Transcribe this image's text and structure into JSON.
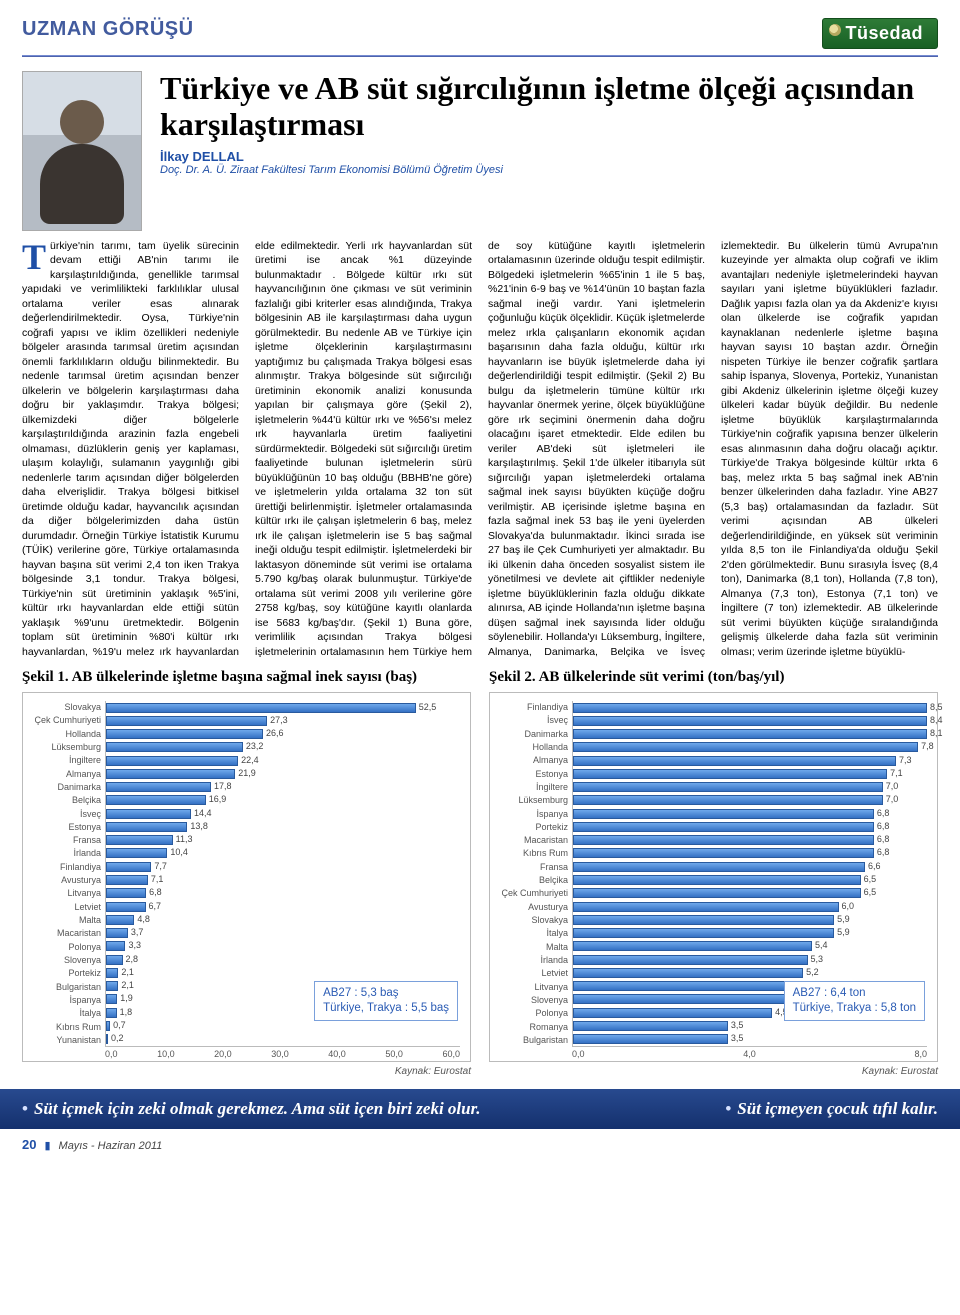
{
  "meta": {
    "section_tag": "UZMAN GÖRÜŞÜ",
    "brand": "Tüsedad",
    "page_number": "20",
    "issue": "Mayıs - Haziran 2011"
  },
  "article": {
    "headline": "Türkiye ve AB süt sığırcılığının işletme ölçeği açısından karşılaştırması",
    "author_name": "İlkay DELLAL",
    "author_title": "Doç. Dr. A. Ü. Ziraat Fakültesi Tarım Ekonomisi Bölümü Öğretim Üyesi",
    "body_dropcap": "T",
    "body_text": "ürkiye'nin tarımı, tam üyelik sürecinin devam ettiği AB'nin tarımı ile karşılaştırıldığında, genellikle tarımsal yapıdaki ve verimlilikteki farklılıklar ulusal ortalama veriler esas alınarak değerlendirilmektedir. Oysa, Türkiye'nin coğrafi yapısı ve iklim özellikleri nedeniyle bölgeler arasında tarımsal üretim açısından önemli farklılıkların olduğu bilinmektedir. Bu nedenle tarımsal üretim açısından benzer ülkelerin ve bölgelerin karşılaştırması daha doğru bir yaklaşımdır. Trakya bölgesi; ülkemizdeki diğer bölgelerle karşılaştırıldığında arazinin fazla engebeli olmaması, düzlüklerin geniş yer kaplaması, ulaşım kolaylığı, sulamanın yaygınlığı gibi nedenlerle tarım açısından diğer bölgelerden daha elverişlidir. Trakya bölgesi bitkisel üretimde olduğu kadar, hayvancılık açısından da diğer bölgelerimizden daha üstün durumdadır. Örneğin Türkiye İstatistik Kurumu (TÜİK) verilerine göre, Türkiye ortalamasında hayvan başına süt verimi 2,4 ton iken Trakya bölgesinde 3,1 tondur. Trakya bölgesi, Türkiye'nin süt üretiminin yaklaşık %5'ini, kültür ırkı hayvanlardan elde ettiği sütün yaklaşık %9'unu üretmektedir. Bölgenin toplam süt üretiminin %80'i kültür ırkı hayvanlardan, %19'u melez ırk hayvanlardan elde edilmektedir. Yerli ırk hayvanlardan süt üretimi ise ancak %1 düzeyinde bulunmaktadır . Bölgede kültür ırkı süt hayvancılığının öne çıkması ve süt veriminin fazlalığı gibi kriterler esas alındığında, Trakya bölgesinin AB ile karşılaştırması daha uygun görülmektedir. Bu nedenle AB ve Türkiye için işletme ölçeklerinin karşılaştırmasını yaptığımız bu çalışmada Trakya bölgesi esas alınmıştır. Trakya bölgesinde süt sığırcılığı üretiminin ekonomik analizi konusunda yapılan bir çalışmaya göre (Şekil 2), işletmelerin %44'ü kültür ırkı ve %56'sı melez ırk hayvanlarla üretim faaliyetini sürdürmektedir. Bölgedeki süt sığırcılığı üretim faaliyetinde bulunan işletmelerin sürü büyüklüğünün 10 baş olduğu (BBHB'ne göre) ve işletmelerin yılda ortalama 32 ton süt ürettiği belirlenmiştir. İşletmeler ortalamasında kültür ırkı ile çalışan işletmelerin 6 baş, melez ırk ile çalışan işletmelerin ise 5 baş sağmal ineği olduğu tespit edilmiştir. İşletmelerdeki bir laktasyon döneminde süt verimi ise ortalama 5.790 kg/baş olarak bulunmuştur. Türkiye'de ortalama süt verimi 2008 yılı verilerine göre 2758 kg/baş, soy kütüğüne kayıtlı olanlarda ise 5683 kg/baş'dır. (Şekil 1) Buna göre, verimlilik açısından Trakya bölgesi işletmelerinin ortalamasının hem Türkiye hem de soy kütüğüne kayıtlı işletmelerin ortalamasının üzerinde olduğu tespit edilmiştir. Bölgedeki işletmelerin %65'inin 1 ile 5 baş, %21'inin 6-9 baş ve %14'ünün 10 baştan fazla sağmal ineği vardır. Yani işletmelerin çoğunluğu küçük ölçeklidir. Küçük işletmelerde melez ırkla çalışanların ekonomik açıdan başarısının daha fazla olduğu, kültür ırkı hayvanların ise büyük işletmelerde daha iyi değerlendirildiği tespit edilmiştir. (Şekil 2) Bu bulgu da işletmelerin tümüne kültür ırkı hayvanlar önermek yerine, ölçek büyüklüğüne göre ırk seçimini önermenin daha doğru olacağını işaret etmektedir. Elde edilen bu veriler AB'deki süt işletmeleri ile karşılaştırılmış. Şekil 1'de ülkeler itibarıyla süt sığırcılığı yapan işletmelerdeki ortalama sağmal inek sayısı büyükten küçüğe doğru verilmiştir. AB içerisinde işletme başına en fazla sağmal inek 53 baş ile yeni üyelerden Slovakya'da bulunmaktadır. İkinci sırada ise 27 baş ile Çek Cumhuriyeti yer almaktadır. Bu iki ülkenin daha önceden sosyalist sistem ile yönetilmesi ve devlete ait çiftlikler nedeniyle işletme büyüklüklerinin fazla olduğu dikkate alınırsa, AB içinde Hollanda'nın işletme başına düşen sağmal inek sayısında lider olduğu söylenebilir. Hollanda'yı Lüksemburg, İngiltere, Almanya, Danimarka, Belçika ve İsveç izlemektedir. Bu ülkelerin tümü Avrupa'nın kuzeyinde yer almakta olup coğrafi ve iklim avantajları nedeniyle işletmelerindeki hayvan sayıları yani işletme büyüklükleri fazladır. Dağlık yapısı fazla olan ya da Akdeniz'e kıyısı olan ülkelerde ise coğrafik yapıdan kaynaklanan nedenlerle işletme başına hayvan sayısı 10 baştan azdır. Örneğin nispeten Türkiye ile benzer coğrafik şartlara sahip İspanya, Slovenya, Portekiz, Yunanistan gibi Akdeniz ülkelerinin işletme ölçeği kuzey ülkeleri kadar büyük değildir. Bu nedenle işletme büyüklük karşılaştırmalarında Türkiye'nin coğrafik yapısına benzer ülkelerin esas alınmasının daha doğru olacağı açıktır. Türkiye'de Trakya bölgesinde kültür ırkta 6 baş, melez ırkta 5 baş sağmal inek AB'nin benzer ülkelerinden daha fazladır. Yine AB27 (5,3 baş) ortalamasından da fazladır. Süt verimi açısından AB ülkeleri değerlendirildiğinde, en yüksek süt veriminin yılda 8,5 ton ile Finlandiya'da olduğu Şekil 2'den görülmektedir. Bunu sırasıyla İsveç (8,4 ton), Danimarka (8,1 ton), Hollanda (7,8 ton), Almanya (7,3 ton), Estonya (7,1 ton) ve İngiltere (7 ton) izlemektedir. AB ülkelerinde süt verimi büyükten küçüğe sıralandığında gelişmiş ülkelerde daha fazla süt veriminin olması; verim üzerinde işletme büyüklü-"
  },
  "chart1": {
    "title": "Şekil 1. AB ülkelerinde işletme başına sağmal inek sayısı (baş)",
    "type": "horizontal-bar",
    "xlim": [
      0,
      60
    ],
    "xtick_step": 10,
    "bar_color_start": "#6fa8eb",
    "bar_color_end": "#3470c4",
    "border_color": "#295a9e",
    "background_color": "#ffffff",
    "grid_color": "#e0e0e0",
    "label_fontsize": 9,
    "title_fontsize": 15,
    "data": [
      {
        "label": "Slovakya",
        "value": 52.5
      },
      {
        "label": "Çek Cumhuriyeti",
        "value": 27.3
      },
      {
        "label": "Hollanda",
        "value": 26.6
      },
      {
        "label": "Lüksemburg",
        "value": 23.2
      },
      {
        "label": "İngiltere",
        "value": 22.4
      },
      {
        "label": "Almanya",
        "value": 21.9
      },
      {
        "label": "Danimarka",
        "value": 17.8
      },
      {
        "label": "Belçika",
        "value": 16.9
      },
      {
        "label": "İsveç",
        "value": 14.4
      },
      {
        "label": "Estonya",
        "value": 13.8
      },
      {
        "label": "Fransa",
        "value": 11.3
      },
      {
        "label": "İrlanda",
        "value": 10.4
      },
      {
        "label": "Finlandiya",
        "value": 7.7
      },
      {
        "label": "Avusturya",
        "value": 7.1
      },
      {
        "label": "Litvanya",
        "value": 6.8
      },
      {
        "label": "Letviet",
        "value": 6.7
      },
      {
        "label": "Malta",
        "value": 4.8
      },
      {
        "label": "Macaristan",
        "value": 3.7
      },
      {
        "label": "Polonya",
        "value": 3.3
      },
      {
        "label": "Slovenya",
        "value": 2.8
      },
      {
        "label": "Portekiz",
        "value": 2.1
      },
      {
        "label": "Bulgaristan",
        "value": 2.1
      },
      {
        "label": "İspanya",
        "value": 1.9
      },
      {
        "label": "İtalya",
        "value": 1.8
      },
      {
        "label": "Kıbrıs Rum",
        "value": 0.7
      },
      {
        "label": "Yunanistan",
        "value": 0.2
      }
    ],
    "callout": [
      "AB27          : 5,3 baş",
      "Türkiye, Trakya : 5,5 baş"
    ],
    "source": "Kaynak: Eurostat"
  },
  "chart2": {
    "title": "Şekil 2. AB ülkelerinde süt verimi (ton/baş/yıl)",
    "type": "horizontal-bar",
    "xlim": [
      0,
      8
    ],
    "xtick_step": 4,
    "bar_color_start": "#6fa8eb",
    "bar_color_end": "#3470c4",
    "border_color": "#295a9e",
    "background_color": "#ffffff",
    "grid_color": "#e0e0e0",
    "label_fontsize": 9,
    "title_fontsize": 15,
    "data": [
      {
        "label": "Finlandiya",
        "value": 8.5
      },
      {
        "label": "İsveç",
        "value": 8.4
      },
      {
        "label": "Danimarka",
        "value": 8.1
      },
      {
        "label": "Hollanda",
        "value": 7.8
      },
      {
        "label": "Almanya",
        "value": 7.3
      },
      {
        "label": "Estonya",
        "value": 7.1
      },
      {
        "label": "İngiltere",
        "value": 7.0
      },
      {
        "label": "Lüksemburg",
        "value": 7.0
      },
      {
        "label": "İspanya",
        "value": 6.8
      },
      {
        "label": "Portekiz",
        "value": 6.8
      },
      {
        "label": "Macaristan",
        "value": 6.8
      },
      {
        "label": "Kıbrıs Rum",
        "value": 6.8
      },
      {
        "label": "Fransa",
        "value": 6.6
      },
      {
        "label": "Belçika",
        "value": 6.5
      },
      {
        "label": "Çek Cumhuriyeti",
        "value": 6.5
      },
      {
        "label": "Avusturya",
        "value": 6.0
      },
      {
        "label": "Slovakya",
        "value": 5.9
      },
      {
        "label": "İtalya",
        "value": 5.9
      },
      {
        "label": "Malta",
        "value": 5.4
      },
      {
        "label": "İrlanda",
        "value": 5.3
      },
      {
        "label": "Letviet",
        "value": 5.2
      },
      {
        "label": "Litvanya",
        "value": 5.1
      },
      {
        "label": "Slovenya",
        "value": 5.0
      },
      {
        "label": "Polonya",
        "value": 4.5
      },
      {
        "label": "Romanya",
        "value": 3.5
      },
      {
        "label": "Bulgaristan",
        "value": 3.5
      }
    ],
    "callout": [
      "AB27             : 6,4 ton",
      "Türkiye, Trakya : 5,8 ton"
    ],
    "source": "Kaynak: Eurostat"
  },
  "footer": {
    "left": "Süt içmek için zeki olmak gerekmez. Ama süt içen biri zeki olur.",
    "right": "Süt içmeyen çocuk tıfıl kalır."
  }
}
